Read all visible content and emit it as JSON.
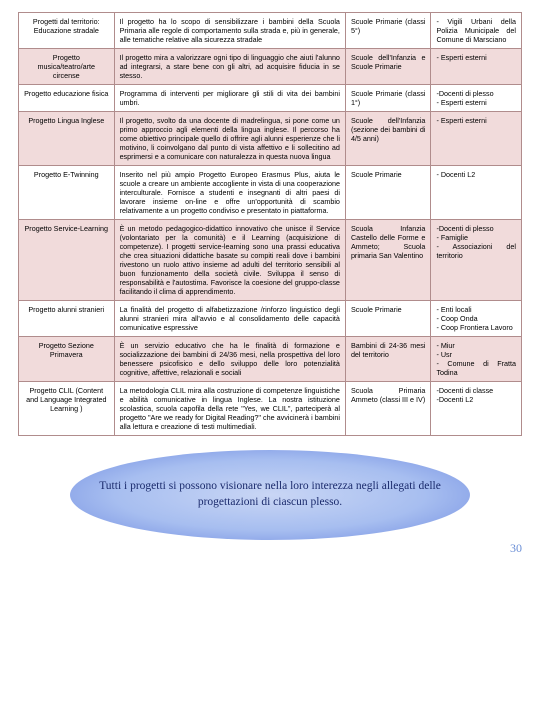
{
  "rows": [
    {
      "highlight": false,
      "c0": "Progetti dal territorio: Educazione stradale",
      "c1": "Il progetto ha lo scopo di sensibilizzare i bambini della Scuola Primaria alle regole di comportamento sulla strada e, più in generale, alle tematiche relative alla sicurezza stradale",
      "c2": "Scuole Primarie (classi 5°)",
      "c3": "- Vigili Urbani della Polizia Municipale del Comune di Marsciano"
    },
    {
      "highlight": true,
      "c0": "Progetto musica/teatro/arte circense",
      "c1": "Il progetto mira a valorizzare ogni tipo di linguaggio che aiuti l'alunno ad integrarsi, a stare bene con gli altri, ad acquisire fiducia in se stesso.",
      "c2": "Scuole dell'Infanzia e Scuole Primarie",
      "c3": "- Esperti esterni"
    },
    {
      "highlight": false,
      "c0": "Progetto educazione fisica",
      "c1": "Programma di interventi per migliorare gli stili di vita dei bambini umbri.",
      "c2": "Scuole Primarie (classi 1°)",
      "c3": "-Docenti di plesso\n- Esperti esterni"
    },
    {
      "highlight": true,
      "c0": "Progetto Lingua Inglese",
      "c1": "Il progetto, svolto da una docente di madrelingua, si pone come un primo approccio agli elementi della lingua inglese. Il percorso ha come obiettivo principale quello di offrire agli alunni esperienze che li motivino, li coinvolgano dal punto di vista affettivo e li sollecitino ad esprimersi e a comunicare con naturalezza in questa nuova lingua",
      "c2": "Scuole dell'Infanzia (sezione dei bambini di 4/5 anni)",
      "c3": "- Esperti esterni"
    },
    {
      "highlight": false,
      "c0": "Progetto E-Twinning",
      "c1": "Inserito nel più ampio Progetto Europeo Erasmus Plus, aiuta le scuole a creare un ambiente accogliente in vista di una cooperazione interculturale. Fornisce a studenti e insegnanti di altri paesi di lavorare insieme on-line e offre un'opportunità di scambio relativamente a un progetto condiviso e presentato in piattaforma.",
      "c2": "Scuole Primarie",
      "c3": "- Docenti L2"
    },
    {
      "highlight": true,
      "c0": "Progetto Service-Learning",
      "c1": "È un metodo pedagogico-didattico innovativo che unisce il Service (volontariato per la comunità) e il Learning (acquisizione di competenze). I progetti service-learning sono una prassi educativa che crea situazioni didattiche basate su compiti reali dove i bambini rivestono un ruolo attivo insieme ad adulti del territorio sensibili al buon funzionamento della società civile. Sviluppa il senso di responsabilità e l'autostima. Favorisce la coesione del gruppo-classe facilitando il clima di apprendimento.",
      "c2": "Scuola Infanzia Castello delle Forme e Ammeto; Scuola primaria San Valentino",
      "c3": "-Docenti di plesso\n- Famiglie\n- Associazioni del territorio"
    },
    {
      "highlight": false,
      "c0": "Progetto alunni stranieri",
      "c1": "La finalità del progetto di alfabetizzazione /rinforzo linguistico degli alunni stranieri mira all'avvio e al consolidamento delle capacità comunicative espressive",
      "c2": "Scuole Primarie",
      "c3": "- Enti locali\n- Coop Onda\n- Coop Frontiera Lavoro"
    },
    {
      "highlight": true,
      "c0": "Progetto Sezione Primavera",
      "c1": "È un servizio educativo che ha le finalità di formazione e socializzazione dei bambini di 24/36 mesi, nella prospettiva del loro benessere psicofisico e dello sviluppo delle loro potenzialità cognitive, affettive, relazionali e sociali",
      "c2": "Bambini di 24-36 mesi del territorio",
      "c3": "- Miur\n- Usr\n- Comune di Fratta Todina"
    },
    {
      "highlight": false,
      "c0": "Progetto CLIL (Content and Language Integrated Learning )",
      "c1": "La metodologia CLIL mira alla costruzione di competenze linguistiche e abilità comunicative in lingua Inglese. La nostra istituzione scolastica, scuola capofila della rete \"Yes, we CLIL\", parteciperà al progetto \"Are we ready for Digital Reading?\" che avvicinerà i bambini alla lettura e creazione di testi multimediali.",
      "c2": "Scuola Primaria Ammeto (classi III e IV)",
      "c3": "-Docenti di classe\n-Docenti L2"
    }
  ],
  "footer": "Tutti i progetti si possono visionare nella loro interezza negli allegati delle progettazioni di ciascun plesso.",
  "page": "30"
}
